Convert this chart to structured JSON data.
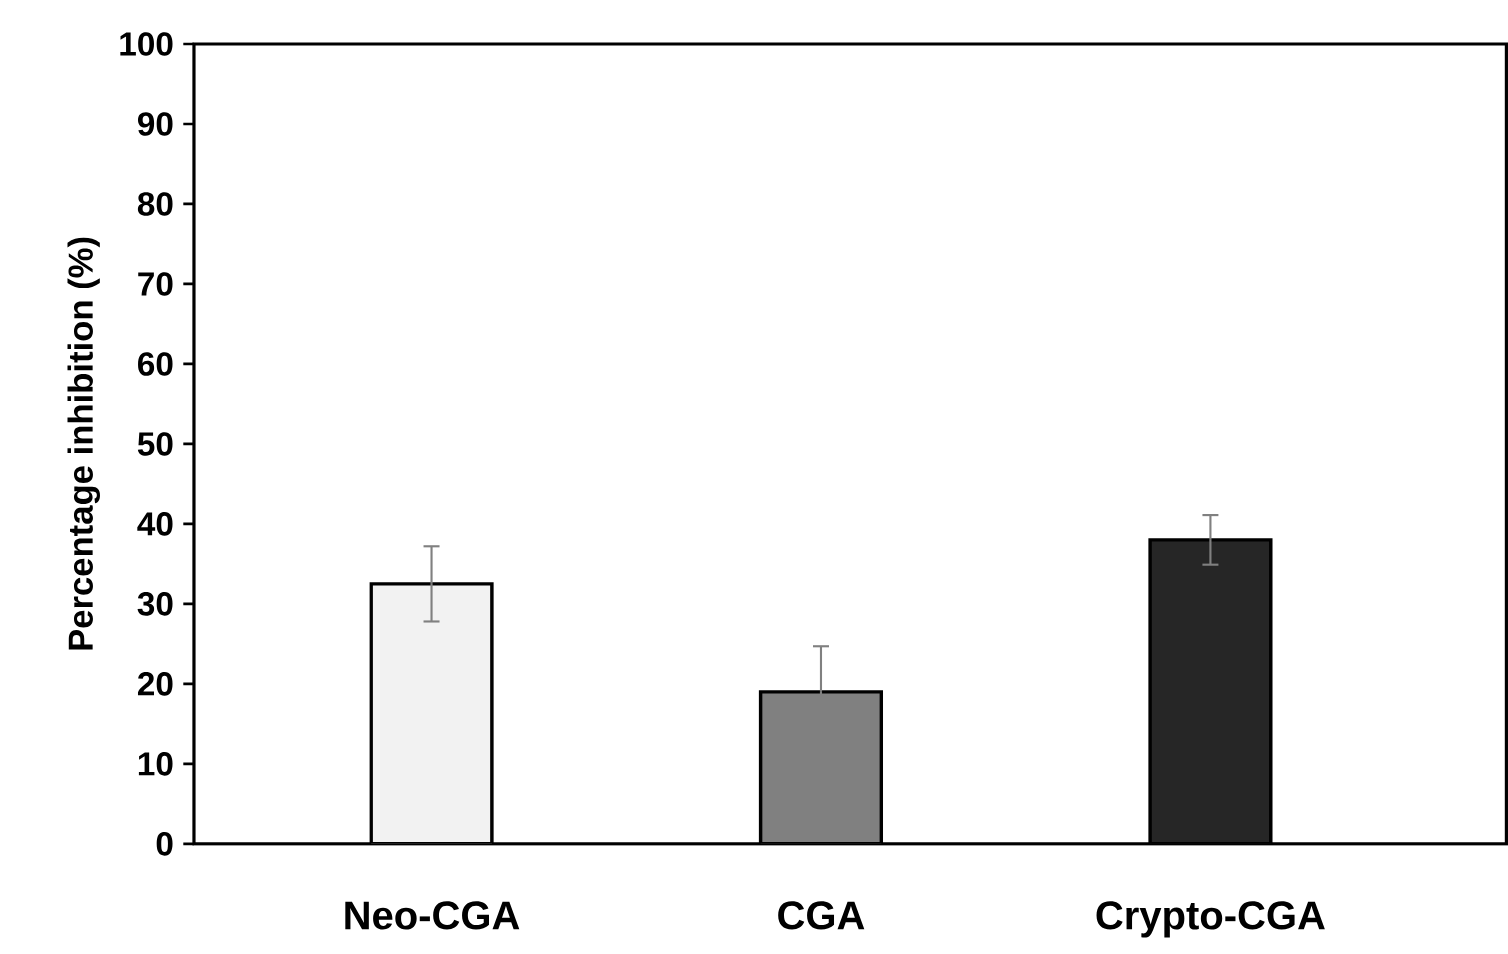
{
  "chart_data": {
    "type": "bar",
    "ylabel": "Percentage inhibition (%)",
    "categories": [
      "Neo-CGA",
      "CGA",
      "Crypto-CGA"
    ],
    "values": [
      32.5,
      19,
      38
    ],
    "errors": [
      4.7,
      5.7,
      3.1
    ],
    "colors": [
      "#f2f2f2",
      "#808080",
      "#262626"
    ],
    "ylim": [
      0,
      100
    ],
    "yticks": [
      0,
      10,
      20,
      30,
      40,
      50,
      60,
      70,
      80,
      90,
      100
    ],
    "grid": false
  }
}
